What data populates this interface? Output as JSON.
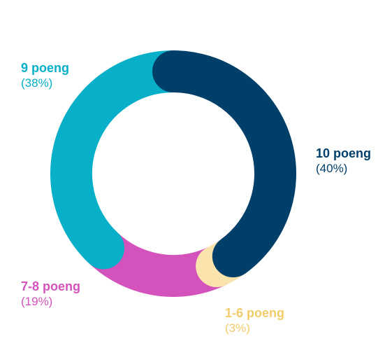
{
  "chart_data": {
    "type": "pie",
    "title": "",
    "categories": [
      "10 poeng",
      "1-6 poeng",
      "7-8 poeng",
      "9 poeng"
    ],
    "values": [
      40,
      3,
      19,
      38
    ],
    "percent_labels": [
      "(40%)",
      "(3%)",
      "(19%)",
      "(38%)"
    ],
    "colors": [
      "#013F6B",
      "#FBE3AE",
      "#D352BB",
      "#07AFC8"
    ],
    "legend": "none"
  }
}
